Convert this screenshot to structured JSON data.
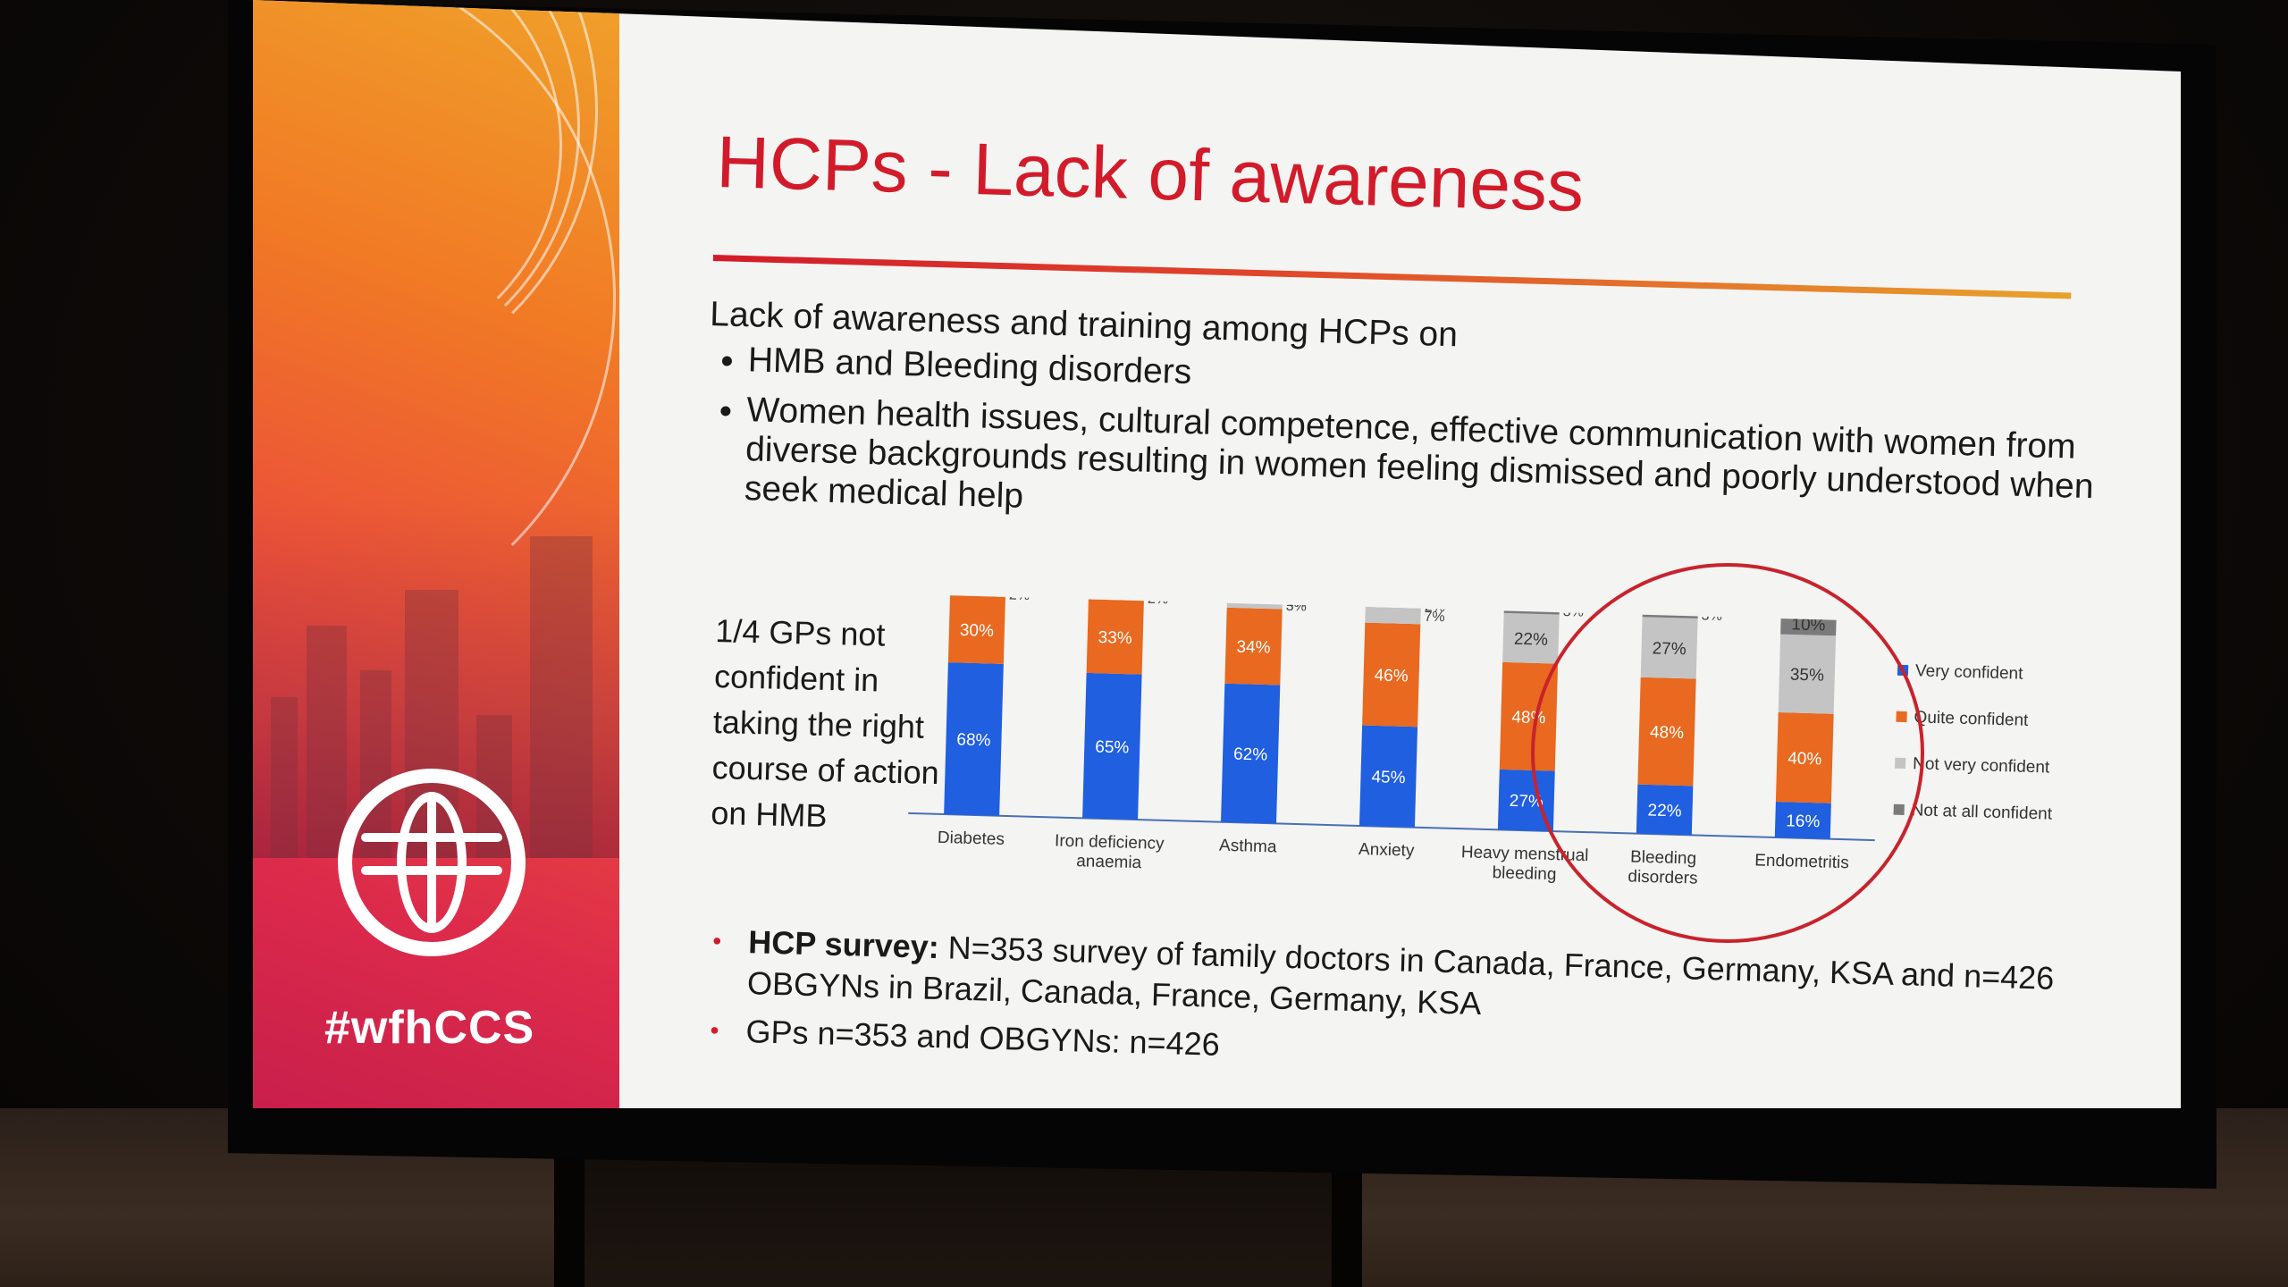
{
  "hashtag": "#wfhCCS",
  "title": "HCPs - Lack of awareness",
  "intro": "Lack of awareness and training among HCPs on",
  "bullets": [
    "HMB and Bleeding disorders",
    "Women health issues, cultural competence, effective communication with women from diverse backgrounds resulting in women feeling dismissed and poorly understood when seek medical help"
  ],
  "gp_note": "1/4 GPs not confident in taking the right course of action on HMB",
  "survey": {
    "label": "HCP survey:",
    "text": "N=353 survey of family doctors in Canada, France, Germany, KSA and n=426 OBGYNs in Brazil, Canada, France, Germany, KSA",
    "second": "GPs n=353  and OBGYNs: n=426"
  },
  "chart_data": {
    "type": "bar",
    "stacked": true,
    "categories": [
      "Diabetes",
      "Iron deficiency anaemia",
      "Asthma",
      "Anxiety",
      "Heavy menstrual bleeding",
      "Bleeding disorders",
      "Endometritis"
    ],
    "series": [
      {
        "name": "Very confident",
        "color": "#1f5fe0",
        "values": [
          68,
          65,
          62,
          45,
          27,
          22,
          16
        ]
      },
      {
        "name": "Quite confident",
        "color": "#e8691f",
        "values": [
          30,
          33,
          34,
          46,
          48,
          48,
          40
        ]
      },
      {
        "name": "Not very confident",
        "color": "#c4c4c4",
        "values": [
          2,
          2,
          3,
          7,
          22,
          27,
          35
        ]
      },
      {
        "name": "Not at all confident",
        "color": "#7b7b7b",
        "values": [
          0,
          0,
          1,
          2,
          3,
          3,
          10
        ]
      }
    ],
    "ylim": [
      0,
      100
    ],
    "legend_position": "right"
  }
}
